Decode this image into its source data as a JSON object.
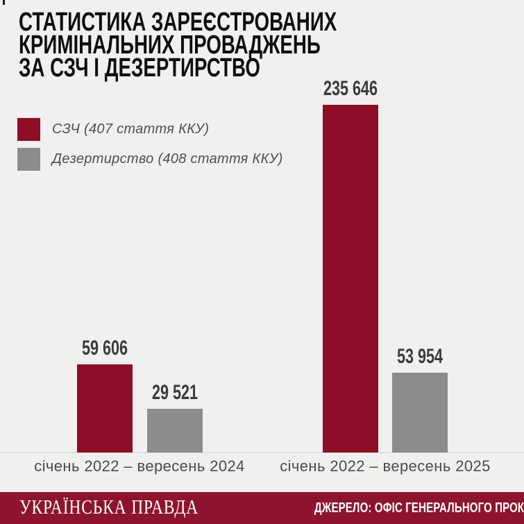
{
  "title": {
    "lines": [
      "СТАТИСТИКА ЗАРЕЄСТРОВАНИХ",
      "КРИМІНАЛЬНИХ ПРОВАДЖЕНЬ",
      "ЗА СЗЧ І ДЕЗЕРТИРСТВО"
    ]
  },
  "legend": {
    "items": [
      {
        "label": "СЗЧ (407 стаття ККУ)",
        "color": "#8d0e26"
      },
      {
        "label": "Дезертирство (408 стаття ККУ)",
        "color": "#8c8c8c"
      }
    ]
  },
  "chart_data": {
    "type": "bar",
    "categories": [
      "січень 2022 – вересень 2024",
      "січень 2022 – вересень 2025"
    ],
    "series": [
      {
        "name": "СЗЧ (407 стаття ККУ)",
        "color": "#8d0e26",
        "values": [
          59606,
          235646
        ],
        "labels": [
          "59 606",
          "235 646"
        ]
      },
      {
        "name": "Дезертирство (408 стаття ККУ)",
        "color": "#8c8c8c",
        "values": [
          29521,
          53954
        ],
        "labels": [
          "29 521",
          "53 954"
        ]
      }
    ],
    "title": "Статистика зареєстрованих кримінальних проваджень за СЗЧ і дезертирство",
    "xlabel": "",
    "ylabel": "",
    "ylim": [
      0,
      236000
    ],
    "grid": false,
    "legend_position": "top-left",
    "value_labels": true
  },
  "footer": {
    "logo": "УКРАЇНСЬКА ПРАВДА",
    "source": "ДЖЕРЕЛО: ОФІС ГЕНЕРАЛЬНОГО ПРОКУРОРА",
    "background": "#8d142c"
  },
  "colors": {
    "background": "#f1f0ee",
    "title_text": "#0e0e0e",
    "value_text": "#3b3b3b",
    "muted_text": "#4b4b4b",
    "baseline": "#e0dede",
    "footer_text": "#ffffff"
  }
}
